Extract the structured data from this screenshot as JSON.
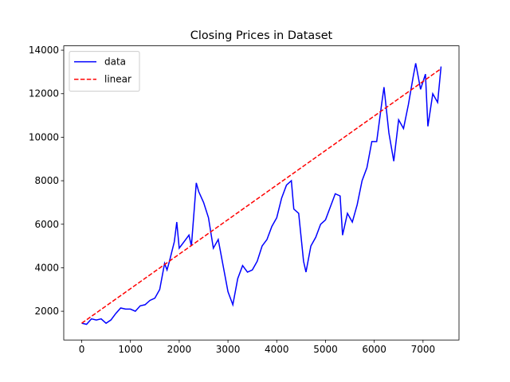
{
  "chart_data": {
    "type": "line",
    "title": "Closing Prices in Dataset",
    "x": [
      0,
      100,
      200,
      300,
      400,
      500,
      600,
      700,
      800,
      900,
      1000,
      1100,
      1200,
      1300,
      1400,
      1500,
      1600,
      1700,
      1750,
      1800,
      1900,
      1950,
      2000,
      2100,
      2200,
      2250,
      2350,
      2400,
      2500,
      2600,
      2700,
      2800,
      2900,
      3000,
      3050,
      3100,
      3200,
      3300,
      3400,
      3500,
      3600,
      3700,
      3800,
      3900,
      4000,
      4100,
      4200,
      4300,
      4350,
      4450,
      4550,
      4600,
      4700,
      4800,
      4900,
      5000,
      5100,
      5200,
      5300,
      5350,
      5450,
      5550,
      5650,
      5750,
      5850,
      5950,
      6050,
      6150,
      6200,
      6300,
      6400,
      6500,
      6600,
      6700,
      6800,
      6850,
      6950,
      7050,
      7100,
      7200,
      7300,
      7370
    ],
    "series": [
      {
        "name": "data",
        "color": "#0000ff",
        "dash": false,
        "x": [
          0,
          100,
          200,
          300,
          400,
          500,
          600,
          700,
          800,
          900,
          1000,
          1100,
          1200,
          1300,
          1400,
          1500,
          1600,
          1700,
          1750,
          1800,
          1900,
          1950,
          2000,
          2100,
          2200,
          2250,
          2350,
          2400,
          2500,
          2600,
          2700,
          2800,
          2900,
          3000,
          3050,
          3100,
          3200,
          3300,
          3400,
          3500,
          3600,
          3700,
          3800,
          3900,
          4000,
          4100,
          4200,
          4300,
          4350,
          4450,
          4550,
          4600,
          4700,
          4800,
          4900,
          5000,
          5100,
          5200,
          5300,
          5350,
          5450,
          5550,
          5650,
          5750,
          5850,
          5950,
          6050,
          6150,
          6200,
          6300,
          6400,
          6500,
          6600,
          6700,
          6800,
          6850,
          6950,
          7050,
          7100,
          7200,
          7300,
          7370
        ],
        "values": [
          1450,
          1400,
          1650,
          1600,
          1650,
          1450,
          1600,
          1900,
          2150,
          2100,
          2100,
          2000,
          2250,
          2300,
          2500,
          2600,
          3000,
          4200,
          3900,
          4300,
          5200,
          6100,
          4900,
          5200,
          5500,
          5000,
          7900,
          7500,
          7000,
          6300,
          4900,
          5300,
          4100,
          2900,
          2600,
          2300,
          3500,
          4100,
          3800,
          3900,
          4300,
          5000,
          5300,
          5900,
          6300,
          7200,
          7800,
          8000,
          6700,
          6500,
          4300,
          3800,
          5000,
          5400,
          6000,
          6200,
          6800,
          7400,
          7300,
          5500,
          6500,
          6100,
          6900,
          8000,
          8600,
          9800,
          9800,
          11500,
          12300,
          10200,
          8900,
          10800,
          10400,
          11500,
          12800,
          13400,
          12200,
          12900,
          10500,
          12000,
          11600,
          13250
        ]
      },
      {
        "name": "linear",
        "color": "#ff0000",
        "dash": true,
        "x": [
          0,
          7370
        ],
        "values": [
          1450,
          13150
        ]
      }
    ],
    "xlim": [
      -368,
      7738
    ],
    "ylim": [
      680,
      14200
    ],
    "xticks": [
      0,
      1000,
      2000,
      3000,
      4000,
      5000,
      6000,
      7000
    ],
    "yticks": [
      2000,
      4000,
      6000,
      8000,
      10000,
      12000,
      14000
    ],
    "legend": "upper left",
    "grid": false
  }
}
